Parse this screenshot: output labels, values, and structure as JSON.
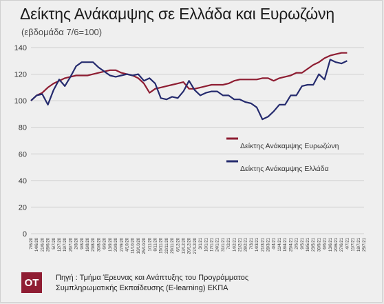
{
  "header": {
    "title": "Δείκτης Ανάκαμψης σε Ελλάδα και Ευρωζώνη",
    "subtitle": "(εβδομάδα 7/6=100)"
  },
  "footer": {
    "logo_text": "OT",
    "source_line1": "Πηγή : Τμήμα Έρευνας και Ανάπτυξης του Προγράμματος",
    "source_line2": "Συμπληρωματικής Εκπαίδευσης (E-learning) ΕΚΠΑ"
  },
  "chart_data": {
    "type": "line",
    "ylim": [
      0,
      140
    ],
    "yticks": [
      0,
      20,
      40,
      60,
      80,
      100,
      120,
      140
    ],
    "grid": true,
    "legend_position": "middle-right",
    "categories": [
      "7/6/20",
      "14/6/20",
      "21/6/20",
      "28/6/20",
      "5/7/20",
      "12/7/20",
      "19/7/20",
      "26/7/20",
      "2/8/20",
      "9/8/20",
      "16/8/20",
      "23/8/20",
      "30/8/20",
      "6/9/20",
      "13/9/20",
      "20/9/20",
      "27/9/20",
      "4/10/20",
      "11/10/20",
      "18/10/20",
      "25/10/20",
      "1/11/20",
      "8/11/20",
      "15/11/20",
      "22/11/20",
      "29/11/20",
      "6/12/20",
      "13/12/20",
      "20/12/20",
      "27/12/20",
      "3/1/21",
      "10/1/21",
      "17/1/21",
      "24/1/21",
      "31/1/21",
      "7/2/21",
      "14/2/21",
      "21/2/21",
      "28/2/21",
      "7/3/21",
      "14/3/21",
      "21/3/21",
      "28/3/21",
      "4/4/21",
      "11/4/21",
      "18/4/21",
      "25/4/21",
      "2/5/21",
      "9/5/21",
      "16/5/21",
      "23/5/21",
      "30/5/21",
      "6/6/21",
      "13/6/21",
      "20/6/21",
      "27/6/21",
      "4/7/21",
      "11/7/21",
      "18/7/21",
      "25/7/21"
    ],
    "series": [
      {
        "name": "Δείκτης Ανάκαμψης Ευρωζώνη",
        "color": "#8e1d32",
        "values": [
          100,
          104,
          106,
          110,
          113,
          115,
          117,
          118,
          119,
          119,
          119,
          120,
          121,
          122,
          123,
          123,
          121,
          120,
          119,
          117,
          113,
          106,
          109,
          110,
          111,
          112,
          113,
          114,
          109,
          109,
          110,
          111,
          112,
          112,
          112,
          113,
          115,
          116,
          116,
          116,
          116,
          117,
          117,
          115,
          117,
          118,
          119,
          121,
          121,
          124,
          127,
          129,
          132,
          134,
          135,
          136,
          136,
          null,
          null,
          null
        ]
      },
      {
        "name": "Δείκτης Ανάκαμψης Ελλάδα",
        "color": "#252b6e",
        "values": [
          100,
          104,
          105,
          97,
          108,
          116,
          111,
          118,
          126,
          129,
          129,
          129,
          125,
          122,
          119,
          118,
          119,
          120,
          119,
          120,
          115,
          117,
          113,
          102,
          101,
          103,
          102,
          107,
          115,
          108,
          104,
          106,
          107,
          107,
          104,
          104,
          101,
          101,
          99,
          98,
          95,
          86,
          88,
          92,
          97,
          97,
          104,
          104,
          111,
          112,
          112,
          120,
          116,
          131,
          129,
          128,
          130,
          null,
          null,
          null
        ]
      }
    ]
  }
}
